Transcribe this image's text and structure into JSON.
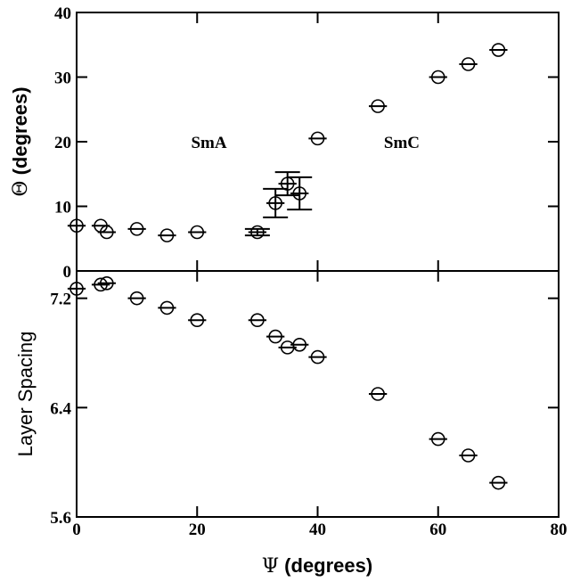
{
  "chart_data": [
    {
      "type": "scatter",
      "panel": "top",
      "ylabel_prefix": "Θ",
      "ylabel_suffix": " (degrees)",
      "xlim": [
        0,
        80
      ],
      "ylim": [
        0,
        40
      ],
      "yticks": [
        0,
        10,
        20,
        30,
        40
      ],
      "yticklabels": [
        "0",
        "10",
        "20",
        "30",
        "40"
      ],
      "annotations": [
        {
          "text": "SmA",
          "x": 19,
          "y": 20
        },
        {
          "text": "SmC",
          "x": 51,
          "y": 20
        }
      ],
      "points": [
        {
          "x": 0,
          "y": 7.0,
          "xerr": 1.5,
          "yerr": 0
        },
        {
          "x": 4,
          "y": 7.0,
          "xerr": 1.5,
          "yerr": 0
        },
        {
          "x": 5,
          "y": 6.0,
          "xerr": 1.5,
          "yerr": 0
        },
        {
          "x": 10,
          "y": 6.5,
          "xerr": 1.5,
          "yerr": 0
        },
        {
          "x": 15,
          "y": 5.5,
          "xerr": 1.5,
          "yerr": 0
        },
        {
          "x": 20,
          "y": 6.0,
          "xerr": 1.5,
          "yerr": 0
        },
        {
          "x": 30,
          "y": 6.0,
          "xerr": 1.5,
          "yerr": 0.5
        },
        {
          "x": 33,
          "y": 10.5,
          "xerr": 1.5,
          "yerr": 2.2
        },
        {
          "x": 35,
          "y": 13.5,
          "xerr": 1.5,
          "yerr": 1.8
        },
        {
          "x": 37,
          "y": 12.0,
          "xerr": 1.5,
          "yerr": 2.5
        },
        {
          "x": 40,
          "y": 20.5,
          "xerr": 1.5,
          "yerr": 0
        },
        {
          "x": 50,
          "y": 25.5,
          "xerr": 1.5,
          "yerr": 0
        },
        {
          "x": 60,
          "y": 30.0,
          "xerr": 1.5,
          "yerr": 0
        },
        {
          "x": 65,
          "y": 32.0,
          "xerr": 1.5,
          "yerr": 0
        },
        {
          "x": 70,
          "y": 34.2,
          "xerr": 1.5,
          "yerr": 0
        }
      ]
    },
    {
      "type": "scatter",
      "panel": "bottom",
      "ylabel": "Layer Spacing",
      "xlabel_prefix": "Ψ",
      "xlabel_suffix": " (degrees)",
      "xlim": [
        0,
        80
      ],
      "ylim": [
        5.6,
        7.4
      ],
      "yticks": [
        5.6,
        6.4,
        7.2
      ],
      "yticklabels": [
        "5.6",
        "6.4",
        "7.2"
      ],
      "xticks": [
        0,
        20,
        40,
        60,
        80
      ],
      "xticklabels": [
        "0",
        "20",
        "40",
        "60",
        "80"
      ],
      "points": [
        {
          "x": 0,
          "y": 7.27,
          "xerr": 1.5
        },
        {
          "x": 4,
          "y": 7.3,
          "xerr": 1.5
        },
        {
          "x": 5,
          "y": 7.31,
          "xerr": 1.5
        },
        {
          "x": 10,
          "y": 7.2,
          "xerr": 1.5
        },
        {
          "x": 15,
          "y": 7.13,
          "xerr": 1.5
        },
        {
          "x": 20,
          "y": 7.04,
          "xerr": 1.5
        },
        {
          "x": 30,
          "y": 7.04,
          "xerr": 1.5
        },
        {
          "x": 33,
          "y": 6.92,
          "xerr": 1.5
        },
        {
          "x": 35,
          "y": 6.84,
          "xerr": 1.5
        },
        {
          "x": 37,
          "y": 6.86,
          "xerr": 1.5
        },
        {
          "x": 40,
          "y": 6.77,
          "xerr": 1.5
        },
        {
          "x": 50,
          "y": 6.5,
          "xerr": 1.5
        },
        {
          "x": 60,
          "y": 6.17,
          "xerr": 1.5
        },
        {
          "x": 65,
          "y": 6.05,
          "xerr": 1.5
        },
        {
          "x": 70,
          "y": 5.85,
          "xerr": 1.5
        }
      ]
    }
  ]
}
